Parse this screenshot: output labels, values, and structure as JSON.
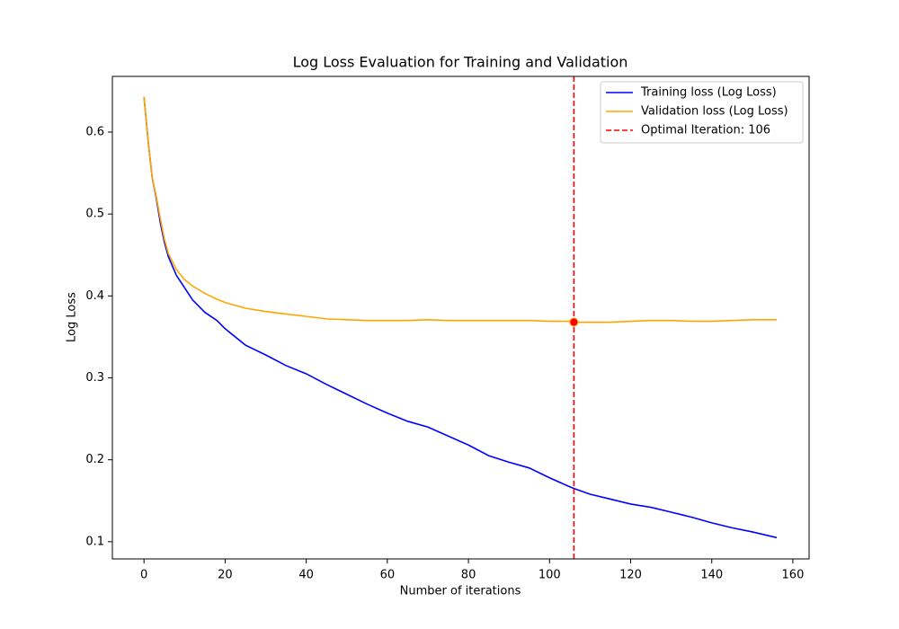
{
  "chart_data": {
    "type": "line",
    "title": "Log Loss Evaluation for Training and Validation",
    "x_label": "Number of iterations",
    "y_label": "Log Loss",
    "x": [
      0,
      1,
      2,
      3,
      4,
      5,
      6,
      8,
      10,
      12,
      15,
      18,
      20,
      25,
      30,
      35,
      40,
      45,
      50,
      55,
      60,
      65,
      70,
      75,
      80,
      85,
      90,
      95,
      100,
      105,
      106,
      110,
      115,
      120,
      125,
      130,
      135,
      140,
      145,
      150,
      156
    ],
    "series": [
      {
        "name": "Training loss (Log Loss)",
        "color": "#0000ff",
        "values": [
          0.643,
          0.59,
          0.545,
          0.52,
          0.49,
          0.466,
          0.448,
          0.425,
          0.41,
          0.395,
          0.38,
          0.37,
          0.36,
          0.34,
          0.328,
          0.315,
          0.305,
          0.292,
          0.28,
          0.268,
          0.257,
          0.247,
          0.24,
          0.229,
          0.218,
          0.205,
          0.197,
          0.19,
          0.178,
          0.167,
          0.165,
          0.158,
          0.152,
          0.146,
          0.142,
          0.136,
          0.13,
          0.123,
          0.117,
          0.112,
          0.105
        ]
      },
      {
        "name": "Validation loss (Log Loss)",
        "color": "#ffa500",
        "values": [
          0.643,
          0.59,
          0.545,
          0.522,
          0.495,
          0.47,
          0.452,
          0.432,
          0.42,
          0.412,
          0.403,
          0.396,
          0.392,
          0.385,
          0.381,
          0.378,
          0.375,
          0.372,
          0.371,
          0.37,
          0.37,
          0.37,
          0.371,
          0.37,
          0.37,
          0.37,
          0.37,
          0.37,
          0.369,
          0.369,
          0.368,
          0.368,
          0.368,
          0.369,
          0.37,
          0.37,
          0.369,
          0.369,
          0.37,
          0.371,
          0.371
        ]
      }
    ],
    "vline": {
      "x": 106,
      "label": "Optimal Iteration: 106",
      "color": "#ff0000"
    },
    "marker": {
      "x": 106,
      "y": 0.368,
      "color": "#ff0000"
    },
    "xlim": [
      -7.8,
      164
    ],
    "ylim": [
      0.079,
      0.668
    ],
    "xticks": [
      0,
      20,
      40,
      60,
      80,
      100,
      120,
      140,
      160
    ],
    "yticks": [
      0.1,
      0.2,
      0.3,
      0.4,
      0.5,
      0.6
    ],
    "legend": "upper right"
  }
}
